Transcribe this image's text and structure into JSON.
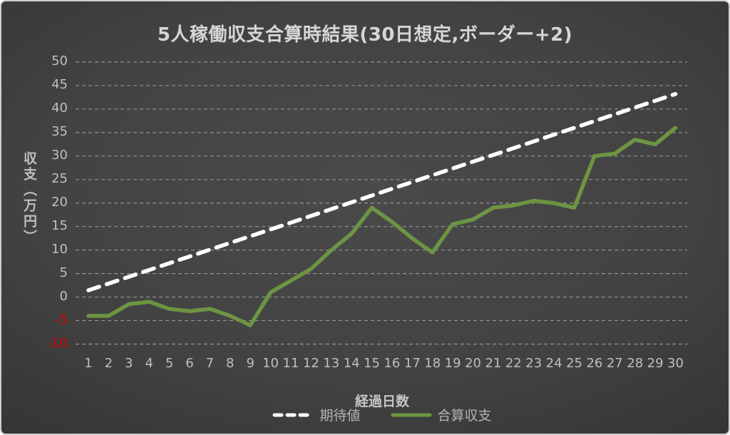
{
  "chart_data": {
    "type": "line",
    "title": "5人稼働収支合算時結果(30日想定,ボーダー+2)",
    "xlabel": "経過日数",
    "ylabel": "収支（万円）",
    "x": [
      1,
      2,
      3,
      4,
      5,
      6,
      7,
      8,
      9,
      10,
      11,
      12,
      13,
      14,
      15,
      16,
      17,
      18,
      19,
      20,
      21,
      22,
      23,
      24,
      25,
      26,
      27,
      28,
      29,
      30
    ],
    "series": [
      {
        "name": "期待値",
        "style": "dashed",
        "color": "#ffffff",
        "values": [
          1.44,
          2.88,
          4.32,
          5.76,
          7.2,
          8.64,
          10.08,
          11.52,
          12.96,
          14.4,
          15.84,
          17.28,
          18.72,
          20.16,
          21.6,
          23.04,
          24.48,
          25.92,
          27.36,
          28.8,
          30.24,
          31.68,
          33.12,
          34.56,
          36.0,
          37.44,
          38.88,
          40.32,
          41.76,
          43.2
        ]
      },
      {
        "name": "合算収支",
        "style": "solid",
        "color": "#6d9443",
        "values": [
          -4,
          -4,
          -1.5,
          -1,
          -2.5,
          -3,
          -2.5,
          -4,
          -6,
          1,
          3.5,
          6,
          10,
          13.5,
          19,
          16,
          12.5,
          9.5,
          15.5,
          16.5,
          19,
          19.5,
          20.5,
          20,
          19,
          30,
          30.5,
          33.5,
          32.5,
          36
        ]
      }
    ],
    "ylim": [
      -10,
      50
    ],
    "y_ticks": [
      50,
      45,
      40,
      35,
      30,
      25,
      20,
      15,
      10,
      5,
      0,
      -5,
      -10
    ],
    "grid": "horizontal-dashed",
    "legend_position": "bottom",
    "colors": {
      "tick_text": "#bfbfbf",
      "negative_tick_text": "#dd0000",
      "gridline": "#a3a3a3",
      "background_center": "#4a4a4a",
      "background_edge": "#121212",
      "frame_border": "#cfcfcf"
    }
  }
}
